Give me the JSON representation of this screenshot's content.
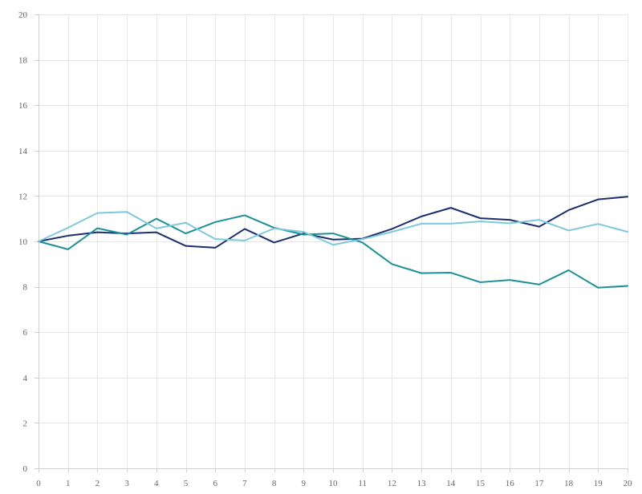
{
  "chart_data": {
    "type": "line",
    "title": "",
    "xlabel": "",
    "ylabel": "",
    "xlim": [
      0,
      20
    ],
    "ylim": [
      0,
      20
    ],
    "grid": true,
    "legend": "none",
    "x": [
      0,
      1,
      2,
      3,
      4,
      5,
      6,
      7,
      8,
      9,
      10,
      11,
      12,
      13,
      14,
      15,
      16,
      17,
      18,
      19,
      20
    ],
    "x_ticks": [
      0,
      1,
      2,
      3,
      4,
      5,
      6,
      7,
      8,
      9,
      10,
      11,
      12,
      13,
      14,
      15,
      16,
      17,
      18,
      19,
      20
    ],
    "y_ticks": [
      0,
      2,
      4,
      6,
      8,
      10,
      12,
      14,
      16,
      18,
      20
    ],
    "series": [
      {
        "color": "#1b2f6e",
        "values": [
          10.0,
          10.25,
          10.4,
          10.35,
          10.4,
          9.8,
          9.72,
          10.55,
          9.95,
          10.35,
          10.08,
          10.12,
          10.55,
          11.1,
          11.48,
          11.02,
          10.95,
          10.65,
          11.38,
          11.85,
          11.97
        ]
      },
      {
        "color": "#1a9196",
        "values": [
          10.0,
          9.65,
          10.58,
          10.3,
          11.0,
          10.35,
          10.85,
          11.15,
          10.6,
          10.3,
          10.35,
          9.95,
          9.0,
          8.6,
          8.62,
          8.2,
          8.3,
          8.1,
          8.73,
          7.96,
          8.04
        ]
      },
      {
        "color": "#7ec8dc",
        "values": [
          10.0,
          10.6,
          11.25,
          11.3,
          10.57,
          10.82,
          10.1,
          10.04,
          10.57,
          10.42,
          9.85,
          10.1,
          10.42,
          10.78,
          10.78,
          10.88,
          10.8,
          10.95,
          10.48,
          10.77,
          10.42
        ]
      }
    ]
  }
}
